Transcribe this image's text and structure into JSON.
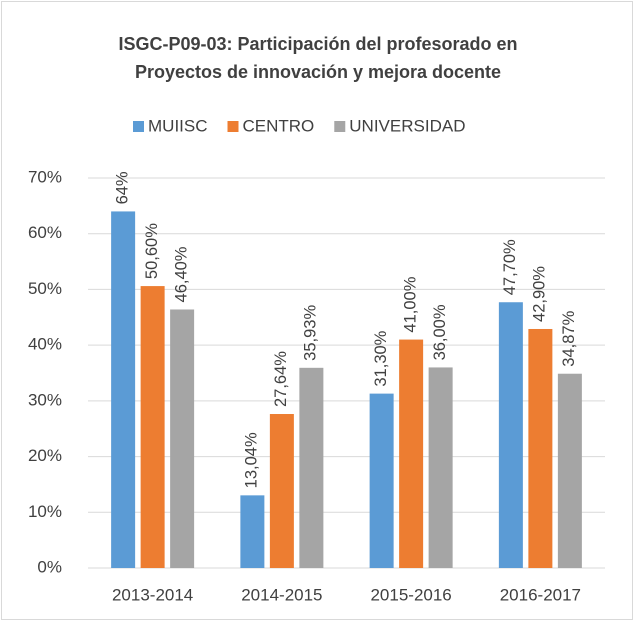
{
  "chart_data": {
    "type": "bar",
    "title": [
      "ISGC-P09-03: Participación del profesorado en",
      "Proyectos de innovación y mejora docente"
    ],
    "categories": [
      "2013-2014",
      "2014-2015",
      "2015-2016",
      "2016-2017"
    ],
    "series": [
      {
        "name": "MUIISC",
        "color": "#5b9bd5",
        "values": [
          64,
          13.04,
          31.3,
          47.7
        ],
        "value_labels": [
          "64%",
          "13,04%",
          "31,30%",
          "47,70%"
        ]
      },
      {
        "name": "CENTRO",
        "color": "#ed7d31",
        "values": [
          50.6,
          27.64,
          41,
          42.9
        ],
        "value_labels": [
          "50,60%",
          "27,64%",
          "41,00%",
          "42,90%"
        ]
      },
      {
        "name": "UNIVERSIDAD",
        "color": "#a5a5a5",
        "values": [
          46.4,
          35.93,
          36,
          34.87
        ],
        "value_labels": [
          "46,40%",
          "35,93%",
          "36,00%",
          "34,87%"
        ]
      }
    ],
    "ylim": [
      0,
      70
    ],
    "yticks": [
      {
        "value": 0,
        "label": "0%"
      },
      {
        "value": 10,
        "label": "10%"
      },
      {
        "value": 20,
        "label": "20%"
      },
      {
        "value": 30,
        "label": "30%"
      },
      {
        "value": 40,
        "label": "40%"
      },
      {
        "value": 50,
        "label": "50%"
      },
      {
        "value": 60,
        "label": "60%"
      },
      {
        "value": 70,
        "label": "70%"
      }
    ],
    "grid": true,
    "legend": "top"
  }
}
